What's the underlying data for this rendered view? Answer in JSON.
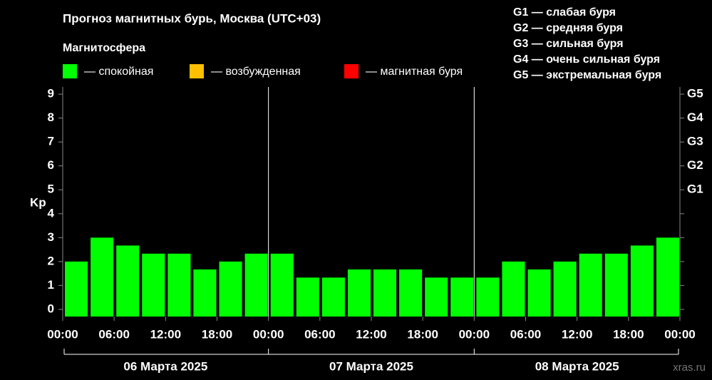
{
  "chart_data": {
    "type": "bar",
    "title": "Прогноз магнитных бурь, Москва (UTC+03)",
    "legend_title": "Магнитосфера",
    "legend": [
      {
        "name": "— спокойная",
        "color": "#00ff00"
      },
      {
        "name": "— возбужденная",
        "color": "#ffc000"
      },
      {
        "name": "— магнитная буря",
        "color": "#ff0000"
      }
    ],
    "scale_notes": [
      "G1 — слабая буря",
      "G2 — средняя буря",
      "G3 — сильная буря",
      "G4 — очень сильная буря",
      "G5 — экстремальная буря"
    ],
    "ylabel": "Kp",
    "color": "#00ff00",
    "values": [
      2,
      3,
      2.67,
      2.33,
      2.33,
      1.67,
      2,
      2.33,
      2.33,
      1.33,
      1.33,
      1.67,
      1.67,
      1.67,
      1.33,
      1.33,
      1.33,
      2,
      1.67,
      2,
      2.33,
      2.33,
      2.67,
      3
    ],
    "x_tick_labels": [
      "00:00",
      "06:00",
      "12:00",
      "18:00",
      "00:00",
      "06:00",
      "12:00",
      "18:00",
      "00:00",
      "06:00",
      "12:00",
      "18:00",
      "00:00"
    ],
    "days": [
      "06 Марта 2025",
      "07 Марта 2025",
      "08 Марта 2025"
    ],
    "ylim": [
      -0.3,
      9.3
    ],
    "yticks": [
      0,
      1,
      2,
      3,
      4,
      5,
      6,
      7,
      8,
      9
    ],
    "y2ticks": [
      {
        "value": 5,
        "label": "G1"
      },
      {
        "value": 6,
        "label": "G2"
      },
      {
        "value": 7,
        "label": "G3"
      },
      {
        "value": 8,
        "label": "G4"
      },
      {
        "value": 9,
        "label": "G5"
      }
    ],
    "watermark": "xras.ru"
  }
}
